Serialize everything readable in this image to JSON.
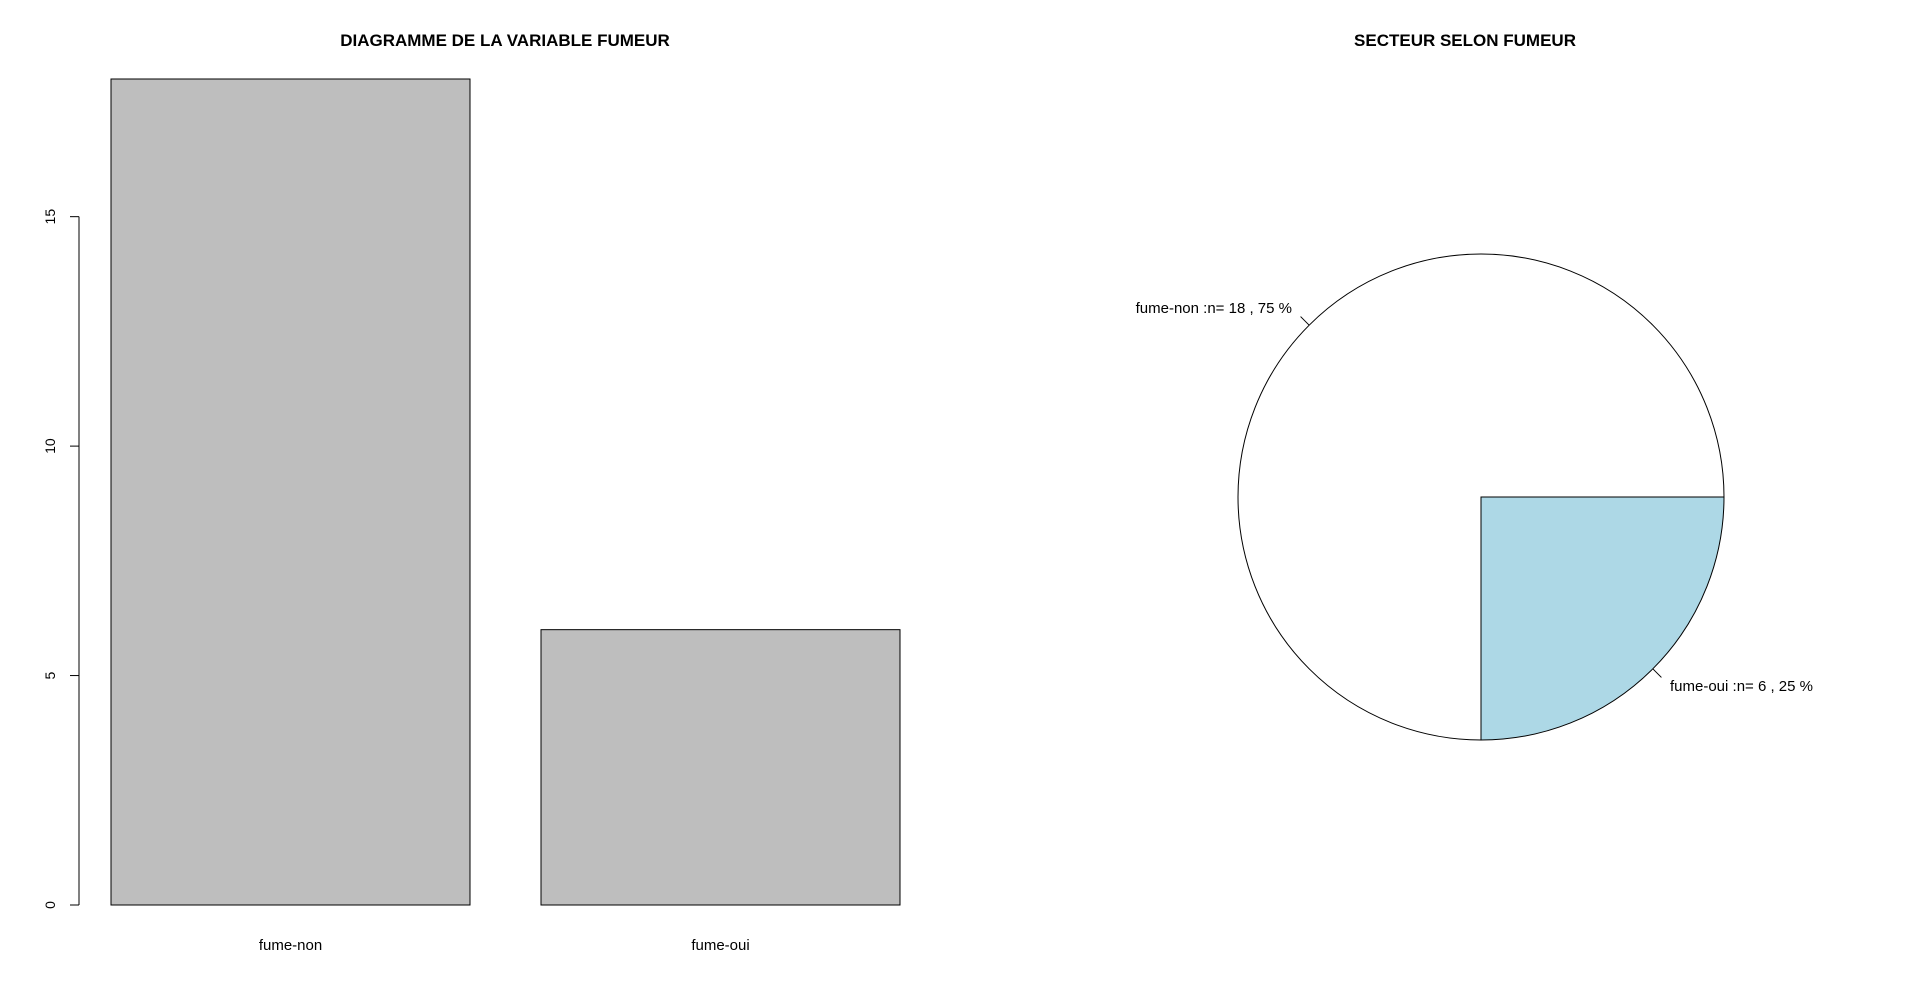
{
  "chart_data": [
    {
      "type": "bar",
      "title": "DIAGRAMME DE LA VARIABLE FUMEUR",
      "categories": [
        "fume-non",
        "fume-oui"
      ],
      "values": [
        18,
        6
      ],
      "ylim": [
        0,
        18
      ],
      "yticks": [
        "0",
        "5",
        "10",
        "15"
      ],
      "bar_color": "#bebebe",
      "xlabel": "",
      "ylabel": ""
    },
    {
      "type": "pie",
      "title": "SECTEUR SELON FUMEUR",
      "slices": [
        {
          "label": "fume-non :n= 18 , 75 %",
          "category": "fume-non",
          "value": 18,
          "percent": 75,
          "color": "#ffffff"
        },
        {
          "label": "fume-oui :n= 6 , 25 %",
          "category": "fume-oui",
          "value": 6,
          "percent": 25,
          "color": "#add8e6"
        }
      ]
    }
  ]
}
